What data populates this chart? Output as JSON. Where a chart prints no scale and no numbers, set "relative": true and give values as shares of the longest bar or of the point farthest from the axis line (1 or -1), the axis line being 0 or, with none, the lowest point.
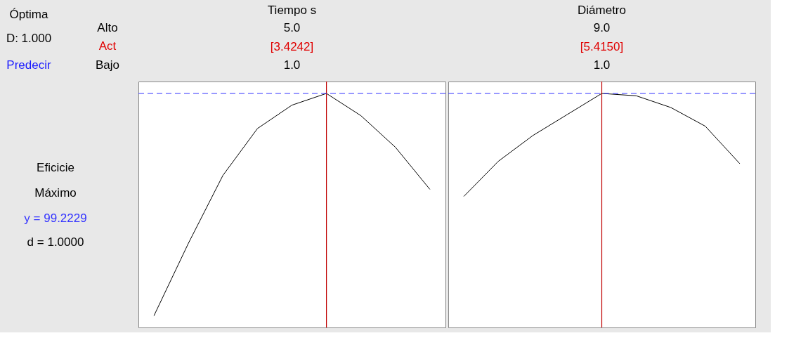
{
  "chart_data": [
    {
      "type": "line",
      "title": "Tiempo s",
      "relative": true,
      "annotations": [
        "5.0",
        "[3.4242]",
        "1.0",
        "Óptima",
        "D: 1.000",
        "Predecir",
        "Alto",
        "Act",
        "Bajo",
        "Eficicie",
        "Máximo",
        "y = 99.2229",
        "d = 1.0000"
      ],
      "categories": [
        null,
        null,
        null,
        null,
        null,
        null,
        null,
        null,
        null
      ],
      "series": [
        {
          "color": "#000000",
          "values": [
            0.05,
            0.36,
            0.65,
            0.85,
            0.95,
            1.0,
            0.905,
            0.77,
            0.59
          ]
        }
      ]
    },
    {
      "type": "line",
      "title": "Diámetro",
      "relative": true,
      "annotations": [
        "9.0",
        "[5.4150]",
        "1.0"
      ],
      "categories": [
        null,
        null,
        null,
        null,
        null,
        null,
        null,
        null,
        null
      ],
      "series": [
        {
          "color": "#000000",
          "values": [
            0.56,
            0.71,
            0.82,
            0.91,
            1.0,
            0.99,
            0.94,
            0.86,
            0.7
          ]
        }
      ]
    }
  ]
}
